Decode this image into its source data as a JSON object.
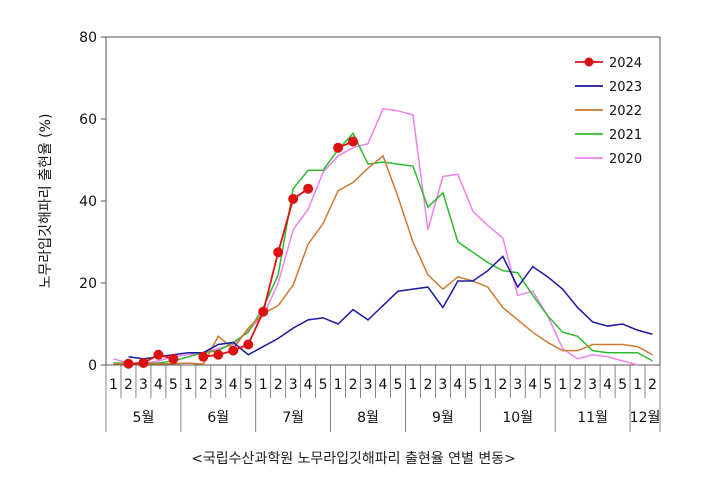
{
  "chart_data": {
    "type": "line",
    "title": "",
    "ylabel": "노무라입깃해파리 출현율 (%)",
    "ylim": [
      0,
      80
    ],
    "yticks": [
      0,
      20,
      40,
      60,
      80
    ],
    "grid": false,
    "legend_position": "top-right",
    "caption": "<국립수산과학원 노무라입깃해파리 출현율 연별 변동>",
    "week_labels": [
      "1",
      "2",
      "3",
      "4",
      "5",
      "1",
      "2",
      "3",
      "4",
      "5",
      "1",
      "2",
      "3",
      "4",
      "5",
      "1",
      "2",
      "3",
      "4",
      "5",
      "1",
      "2",
      "3",
      "4",
      "5",
      "1",
      "2",
      "3",
      "4",
      "5",
      "1",
      "2",
      "3",
      "4",
      "5",
      "1",
      "2"
    ],
    "months": [
      {
        "label": "5월",
        "start": 0,
        "count": 5
      },
      {
        "label": "6월",
        "start": 5,
        "count": 5
      },
      {
        "label": "7월",
        "start": 10,
        "count": 5
      },
      {
        "label": "8월",
        "start": 15,
        "count": 5
      },
      {
        "label": "9월",
        "start": 20,
        "count": 5
      },
      {
        "label": "10월",
        "start": 25,
        "count": 5
      },
      {
        "label": "11월",
        "start": 30,
        "count": 5
      },
      {
        "label": "12월",
        "start": 35,
        "count": 2
      }
    ],
    "series": [
      {
        "name": "2020",
        "color": "#ee82ee",
        "values": [
          1.5,
          0.5,
          0.3,
          1.0,
          2.0,
          2.5,
          3.0,
          4.0,
          5.0,
          8.5,
          12.0,
          20.0,
          33.0,
          38.0,
          47.0,
          51.0,
          53.0,
          54.0,
          62.5,
          62.0,
          61.0,
          33.0,
          46.0,
          46.5,
          37.5,
          34.0,
          31.0,
          17.0,
          18.0,
          12.0,
          4.0,
          1.5,
          2.5,
          2.0,
          1.0,
          0.0,
          null
        ],
        "markers": false
      },
      {
        "name": "2021",
        "color": "#2fba2f",
        "values": [
          0.5,
          0.5,
          0.3,
          0.5,
          1.0,
          2.0,
          3.0,
          3.5,
          5.5,
          8.0,
          14.0,
          22.0,
          43.0,
          47.5,
          47.5,
          52.5,
          56.5,
          49.0,
          49.5,
          49.0,
          48.5,
          38.5,
          42.0,
          30.0,
          27.5,
          25.0,
          23.0,
          22.5,
          17.0,
          12.0,
          8.0,
          7.0,
          3.5,
          3.0,
          3.0,
          3.0,
          1.0
        ],
        "markers": false
      },
      {
        "name": "2022",
        "color": "#cc7a30",
        "values": [
          0.3,
          0.3,
          0.3,
          0.3,
          0.3,
          0.5,
          0.2,
          7.0,
          4.0,
          9.0,
          12.5,
          14.5,
          19.5,
          29.5,
          34.5,
          42.5,
          44.5,
          48.0,
          51.0,
          41.0,
          30.0,
          22.0,
          18.5,
          21.5,
          20.5,
          19.0,
          14.0,
          11.0,
          8.0,
          5.5,
          3.5,
          3.5,
          5.0,
          5.0,
          5.0,
          4.5,
          2.5
        ],
        "markers": false
      },
      {
        "name": "2023",
        "color": "#1a1aa0",
        "values": [
          null,
          2.0,
          1.5,
          2.0,
          2.5,
          3.0,
          3.0,
          5.0,
          5.5,
          2.5,
          4.5,
          6.5,
          9.0,
          11.0,
          11.5,
          10.0,
          13.5,
          11.0,
          14.5,
          18.0,
          18.5,
          19.0,
          14.0,
          20.5,
          20.5,
          23.0,
          26.5,
          19.0,
          24.0,
          21.5,
          18.5,
          14.0,
          10.5,
          9.5,
          10.0,
          8.5,
          7.5
        ],
        "markers": false
      },
      {
        "name": "2024",
        "color": "#dd1111",
        "values": [
          null,
          0.3,
          0.5,
          2.5,
          1.5,
          null,
          2.0,
          2.5,
          3.5,
          5.0,
          13.0,
          27.5,
          40.5,
          43.0,
          null,
          53.0,
          54.5
        ],
        "markers": true
      }
    ]
  }
}
